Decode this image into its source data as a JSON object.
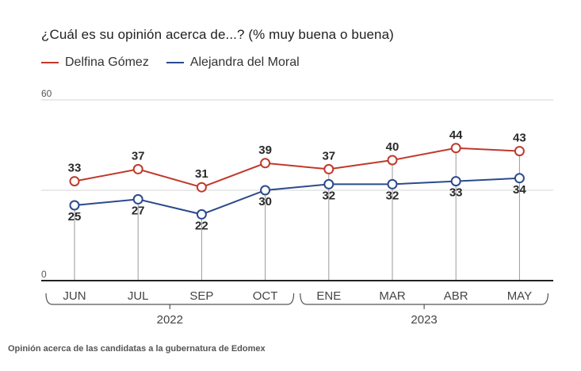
{
  "title": "¿Cuál es su opinión acerca de...? (% muy buena o buena)",
  "caption": "Opinión acerca de las candidatas a la gubernatura de Edomex",
  "chart_data": {
    "type": "line",
    "categories": [
      "JUN",
      "JUL",
      "SEP",
      "OCT",
      "ENE",
      "MAR",
      "ABR",
      "MAY"
    ],
    "year_groups": [
      {
        "label": "2022",
        "from": 0,
        "to": 3
      },
      {
        "label": "2023",
        "from": 4,
        "to": 7
      }
    ],
    "series": [
      {
        "name": "Delfina Gómez",
        "color": "#c0392b",
        "values": [
          33,
          37,
          31,
          39,
          37,
          40,
          44,
          43
        ]
      },
      {
        "name": "Alejandra del Moral",
        "color": "#2c4a8c",
        "values": [
          25,
          27,
          22,
          30,
          32,
          32,
          33,
          34
        ]
      }
    ],
    "ylim": [
      0,
      60
    ],
    "yticks": [
      "0",
      "60"
    ],
    "grid": true,
    "legend": "top-left"
  }
}
